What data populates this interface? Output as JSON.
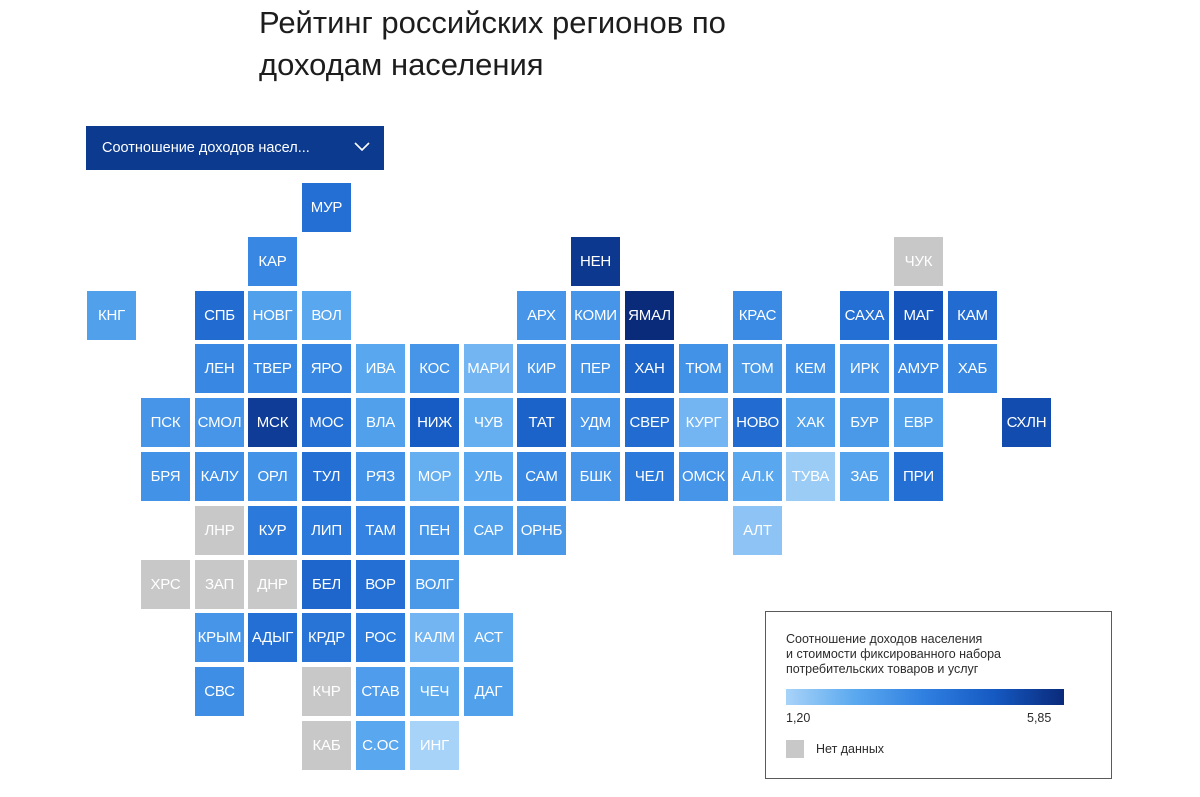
{
  "title_lines": [
    "Рейтинг российских регионов по",
    "доходам населения"
  ],
  "dropdown": {
    "label": "Соотношение доходов насел...",
    "icon": "chevron-down-icon"
  },
  "colors": {
    "min": "#9fcdf7",
    "max": "#0a2a7a",
    "no_data": "#c8c8c8",
    "dropdown_bg": "#0b3a8e"
  },
  "chart_data": {
    "type": "heatmap",
    "subtype": "tile-grid-map",
    "title": "Рейтинг российских регионов по доходам населения",
    "scale": {
      "min": 1.2,
      "max": 5.85,
      "min_label": "1,20",
      "max_label": "5,85"
    },
    "legend": {
      "title_lines": [
        "Соотношение доходов населения",
        "и стоимости фиксированного набора",
        "потребительских товаров и услуг"
      ],
      "no_data_label": "Нет данных",
      "placement": "bottom-right"
    },
    "tiles": [
      {
        "label": "МУР",
        "col": 4,
        "row": 0,
        "value": 4.0
      },
      {
        "label": "КАР",
        "col": 3,
        "row": 1,
        "value": 3.3
      },
      {
        "label": "НЕН",
        "col": 9,
        "row": 1,
        "value": 5.5
      },
      {
        "label": "ЧУК",
        "col": 15,
        "row": 1,
        "value": null
      },
      {
        "label": "КНГ",
        "col": 0,
        "row": 2,
        "value": 2.6
      },
      {
        "label": "СПБ",
        "col": 2,
        "row": 2,
        "value": 4.1
      },
      {
        "label": "НОВГ",
        "col": 3,
        "row": 2,
        "value": 2.6
      },
      {
        "label": "ВОЛ",
        "col": 4,
        "row": 2,
        "value": 2.4
      },
      {
        "label": "АРХ",
        "col": 8,
        "row": 2,
        "value": 2.9
      },
      {
        "label": "КОМИ",
        "col": 9,
        "row": 2,
        "value": 2.9
      },
      {
        "label": "ЯМАЛ",
        "col": 10,
        "row": 2,
        "value": 5.85
      },
      {
        "label": "КРАС",
        "col": 12,
        "row": 2,
        "value": 3.2
      },
      {
        "label": "САХА",
        "col": 14,
        "row": 2,
        "value": 4.0
      },
      {
        "label": "МАГ",
        "col": 15,
        "row": 2,
        "value": 4.8
      },
      {
        "label": "КАМ",
        "col": 16,
        "row": 2,
        "value": 4.1
      },
      {
        "label": "ЛЕН",
        "col": 2,
        "row": 3,
        "value": 3.3
      },
      {
        "label": "ТВЕР",
        "col": 3,
        "row": 3,
        "value": 3.3
      },
      {
        "label": "ЯРО",
        "col": 4,
        "row": 3,
        "value": 3.3
      },
      {
        "label": "ИВА",
        "col": 5,
        "row": 3,
        "value": 2.4
      },
      {
        "label": "КОС",
        "col": 6,
        "row": 3,
        "value": 2.9
      },
      {
        "label": "МАРИ",
        "col": 7,
        "row": 3,
        "value": 2.0
      },
      {
        "label": "КИР",
        "col": 8,
        "row": 3,
        "value": 2.9
      },
      {
        "label": "ПЕР",
        "col": 9,
        "row": 3,
        "value": 3.0
      },
      {
        "label": "ХАН",
        "col": 10,
        "row": 3,
        "value": 4.4
      },
      {
        "label": "ТЮМ",
        "col": 11,
        "row": 3,
        "value": 3.0
      },
      {
        "label": "ТОМ",
        "col": 12,
        "row": 3,
        "value": 2.8
      },
      {
        "label": "КЕМ",
        "col": 13,
        "row": 3,
        "value": 3.0
      },
      {
        "label": "ИРК",
        "col": 14,
        "row": 3,
        "value": 2.9
      },
      {
        "label": "АМУР",
        "col": 15,
        "row": 3,
        "value": 3.3
      },
      {
        "label": "ХАБ",
        "col": 16,
        "row": 3,
        "value": 3.3
      },
      {
        "label": "ПСК",
        "col": 1,
        "row": 4,
        "value": 2.9
      },
      {
        "label": "СМОЛ",
        "col": 2,
        "row": 4,
        "value": 2.9
      },
      {
        "label": "МСК",
        "col": 3,
        "row": 4,
        "value": 5.4
      },
      {
        "label": "МОС",
        "col": 4,
        "row": 4,
        "value": 4.0
      },
      {
        "label": "ВЛА",
        "col": 5,
        "row": 4,
        "value": 2.6
      },
      {
        "label": "НИЖ",
        "col": 6,
        "row": 4,
        "value": 4.6
      },
      {
        "label": "ЧУВ",
        "col": 7,
        "row": 4,
        "value": 2.2
      },
      {
        "label": "ТАТ",
        "col": 8,
        "row": 4,
        "value": 4.4
      },
      {
        "label": "УДМ",
        "col": 9,
        "row": 4,
        "value": 2.9
      },
      {
        "label": "СВЕР",
        "col": 10,
        "row": 4,
        "value": 4.1
      },
      {
        "label": "КУРГ",
        "col": 11,
        "row": 4,
        "value": 2.0
      },
      {
        "label": "НОВО",
        "col": 12,
        "row": 4,
        "value": 4.1
      },
      {
        "label": "ХАК",
        "col": 13,
        "row": 4,
        "value": 2.6
      },
      {
        "label": "БУР",
        "col": 14,
        "row": 4,
        "value": 2.8
      },
      {
        "label": "ЕВР",
        "col": 15,
        "row": 4,
        "value": 2.6
      },
      {
        "label": "СХЛН",
        "col": 17,
        "row": 4,
        "value": 5.0
      },
      {
        "label": "БРЯ",
        "col": 1,
        "row": 5,
        "value": 3.0
      },
      {
        "label": "КАЛУ",
        "col": 2,
        "row": 5,
        "value": 3.1
      },
      {
        "label": "ОРЛ",
        "col": 3,
        "row": 5,
        "value": 3.0
      },
      {
        "label": "ТУЛ",
        "col": 4,
        "row": 5,
        "value": 4.0
      },
      {
        "label": "РЯЗ",
        "col": 5,
        "row": 5,
        "value": 3.0
      },
      {
        "label": "МОР",
        "col": 6,
        "row": 5,
        "value": 2.2
      },
      {
        "label": "УЛЬ",
        "col": 7,
        "row": 5,
        "value": 2.4
      },
      {
        "label": "САМ",
        "col": 8,
        "row": 5,
        "value": 3.3
      },
      {
        "label": "БШК",
        "col": 9,
        "row": 5,
        "value": 2.9
      },
      {
        "label": "ЧЕЛ",
        "col": 10,
        "row": 5,
        "value": 3.7
      },
      {
        "label": "ОМСК",
        "col": 11,
        "row": 5,
        "value": 2.9
      },
      {
        "label": "АЛ.К",
        "col": 12,
        "row": 5,
        "value": 2.4
      },
      {
        "label": "ТУВА",
        "col": 13,
        "row": 5,
        "value": 1.4
      },
      {
        "label": "ЗАБ",
        "col": 14,
        "row": 5,
        "value": 2.5
      },
      {
        "label": "ПРИ",
        "col": 15,
        "row": 5,
        "value": 4.0
      },
      {
        "label": "ЛНР",
        "col": 2,
        "row": 6,
        "value": null
      },
      {
        "label": "КУР",
        "col": 3,
        "row": 6,
        "value": 3.7
      },
      {
        "label": "ЛИП",
        "col": 4,
        "row": 6,
        "value": 3.7
      },
      {
        "label": "ТАМ",
        "col": 5,
        "row": 6,
        "value": 3.4
      },
      {
        "label": "ПЕН",
        "col": 6,
        "row": 6,
        "value": 2.9
      },
      {
        "label": "САР",
        "col": 7,
        "row": 6,
        "value": 2.6
      },
      {
        "label": "ОРНБ",
        "col": 8,
        "row": 6,
        "value": 2.8
      },
      {
        "label": "АЛТ",
        "col": 12,
        "row": 6,
        "value": 1.6
      },
      {
        "label": "ХРС",
        "col": 1,
        "row": 7,
        "value": null
      },
      {
        "label": "ЗАП",
        "col": 2,
        "row": 7,
        "value": null
      },
      {
        "label": "ДНР",
        "col": 3,
        "row": 7,
        "value": null
      },
      {
        "label": "БЕЛ",
        "col": 4,
        "row": 7,
        "value": 4.3
      },
      {
        "label": "ВОР",
        "col": 5,
        "row": 7,
        "value": 4.0
      },
      {
        "label": "ВОЛГ",
        "col": 6,
        "row": 7,
        "value": 2.8
      },
      {
        "label": "КРЫМ",
        "col": 2,
        "row": 8,
        "value": 2.9
      },
      {
        "label": "АДЫГ",
        "col": 3,
        "row": 8,
        "value": 4.0
      },
      {
        "label": "КРДР",
        "col": 4,
        "row": 8,
        "value": 3.9
      },
      {
        "label": "РОС",
        "col": 5,
        "row": 8,
        "value": 3.6
      },
      {
        "label": "КАЛМ",
        "col": 6,
        "row": 8,
        "value": 2.0
      },
      {
        "label": "АСТ",
        "col": 7,
        "row": 8,
        "value": 2.3
      },
      {
        "label": "СВС",
        "col": 2,
        "row": 9,
        "value": 3.1
      },
      {
        "label": "КЧР",
        "col": 4,
        "row": 9,
        "value": null
      },
      {
        "label": "СТАВ",
        "col": 5,
        "row": 9,
        "value": 2.7
      },
      {
        "label": "ЧЕЧ",
        "col": 6,
        "row": 9,
        "value": 2.3
      },
      {
        "label": "ДАГ",
        "col": 7,
        "row": 9,
        "value": 2.6
      },
      {
        "label": "КАБ",
        "col": 4,
        "row": 10,
        "value": null
      },
      {
        "label": "С.ОС",
        "col": 5,
        "row": 10,
        "value": 2.4
      },
      {
        "label": "ИНГ",
        "col": 6,
        "row": 10,
        "value": 1.2
      }
    ]
  }
}
